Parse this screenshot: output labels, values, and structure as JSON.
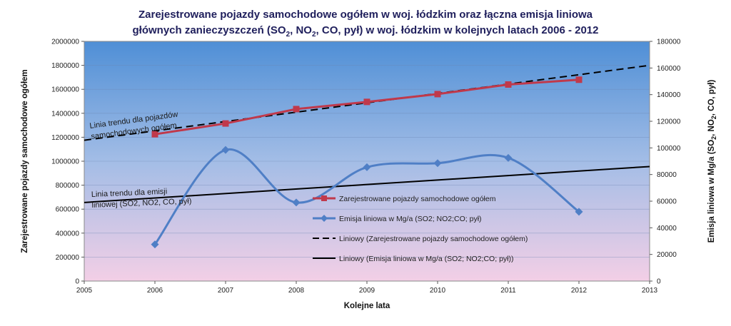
{
  "chart_data": {
    "type": "line",
    "title_line1": "Zarejestrowane pojazdy samochodowe ogółem w woj. łódzkim oraz  łączna emisja liniowa",
    "title_line2_parts": [
      "głównych zanieczyszczeń (SO",
      "2",
      ", NO",
      "2",
      ", CO, pył) w woj. łódzkim w kolejnych latach 2006 - 2012"
    ],
    "xlabel": "Kolejne lata",
    "ylabel_left": "Zarejestrowane pojazdy samochodowe ogółem",
    "ylabel_right_parts": [
      "Emisja liniowa w Mg/a  (SO",
      "2",
      ", NO",
      "2",
      ", CO, pył)"
    ],
    "x_ticks": [
      "2005",
      "2006",
      "2007",
      "2008",
      "2009",
      "2010",
      "2011",
      "2012",
      "2013"
    ],
    "x_range": [
      2005,
      2013
    ],
    "y_left_ticks": [
      "0",
      "200000",
      "400000",
      "600000",
      "800000",
      "1000000",
      "1200000",
      "1400000",
      "1600000",
      "1800000",
      "2000000"
    ],
    "y_left_range": [
      0,
      2000000
    ],
    "y_right_ticks": [
      "0",
      "20000",
      "40000",
      "60000",
      "80000",
      "100000",
      "120000",
      "140000",
      "160000",
      "180000"
    ],
    "y_right_range": [
      0,
      180000
    ],
    "grid": true,
    "legend_position": "center-right",
    "series": [
      {
        "name": "Zarejestrowane pojazdy samochodowe ogółem",
        "axis": "left",
        "color": "#c0394b",
        "marker": "square",
        "x": [
          2006,
          2007,
          2008,
          2009,
          2010,
          2011,
          2012
        ],
        "y": [
          1225000,
          1315000,
          1435000,
          1495000,
          1560000,
          1640000,
          1680000
        ]
      },
      {
        "name": "Emisja liniowa w Mg/a (SO2; NO2;CO; pył)",
        "axis": "right",
        "color": "#4f7fc6",
        "marker": "diamond",
        "smooth": true,
        "x": [
          2006,
          2007,
          2008,
          2009,
          2010,
          2011,
          2012
        ],
        "y": [
          27500,
          98500,
          59000,
          85500,
          88500,
          92500,
          52000
        ]
      },
      {
        "name": "Liniowy (Zarejestrowane pojazdy samochodowe ogółem)",
        "axis": "left",
        "color": "#000000",
        "dash": true,
        "x": [
          2005,
          2013
        ],
        "y": [
          1175000,
          1800000
        ]
      },
      {
        "name": "Liniowy (Emisja liniowa w Mg/a (SO2; NO2;CO; pył))",
        "axis": "right",
        "color": "#000000",
        "dash": false,
        "x": [
          2005,
          2013
        ],
        "y": [
          59000,
          86000
        ]
      }
    ],
    "annotations": [
      {
        "lines": [
          "Linia trendu dla pojazdów",
          "samochodowych ogółem"
        ]
      },
      {
        "lines": [
          "Linia trendu dla emisji",
          "liniowej (SO2, NO2, CO, pył)"
        ]
      }
    ]
  }
}
